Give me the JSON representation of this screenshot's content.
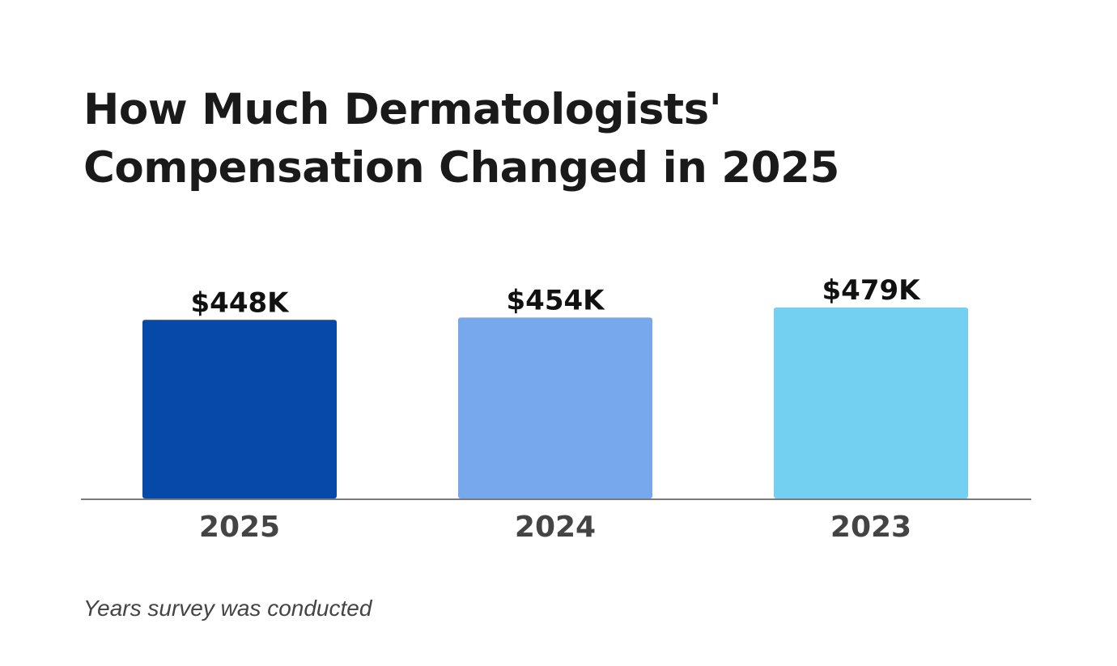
{
  "title": "How Much Dermatologists' Compensation Changed in 2025",
  "footnote": "Years survey was conducted",
  "colors": {
    "title": "#1a1a1a",
    "axis": "#7a7a7a",
    "value_label": "#111111",
    "tick_label": "#444444"
  },
  "chart_data": {
    "type": "bar",
    "title": "How Much Dermatologists' Compensation Changed in 2025",
    "xlabel": "Years survey was conducted",
    "ylabel": "",
    "categories": [
      "2025",
      "2024",
      "2023"
    ],
    "values": [
      448,
      454,
      479
    ],
    "value_labels": [
      "$448K",
      "$454K",
      "$479K"
    ],
    "value_unit": "thousand USD",
    "bar_colors": [
      "#0649a8",
      "#77a8ee",
      "#74d0f0"
    ],
    "ylim": [
      0,
      479
    ],
    "grid": false,
    "legend": "none"
  }
}
